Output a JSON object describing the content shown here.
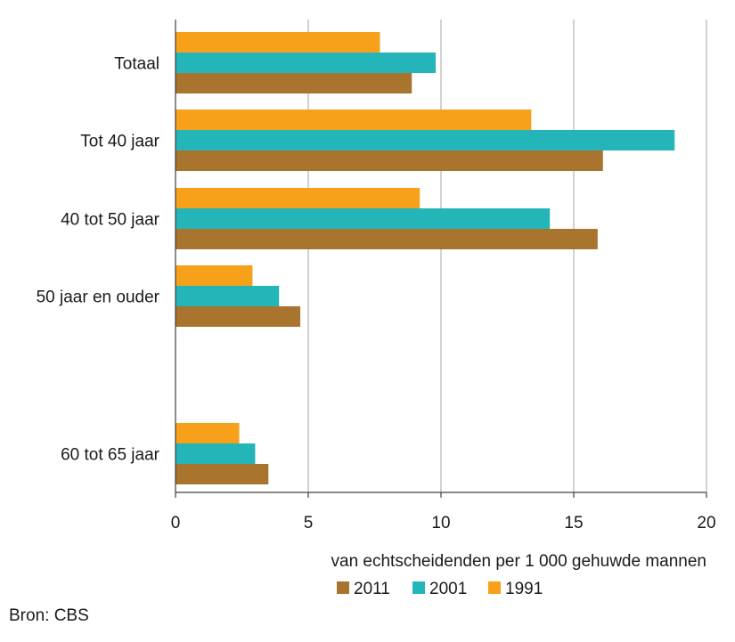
{
  "chart_data": {
    "type": "bar",
    "orientation": "horizontal",
    "categories": [
      "Totaal",
      "Tot 40 jaar",
      "40 tot 50 jaar",
      "50 jaar en ouder",
      "60 tot 65 jaar"
    ],
    "series": [
      {
        "name": "1991",
        "color": "#f7a11a",
        "values": [
          7.7,
          13.4,
          9.2,
          2.9,
          2.4
        ]
      },
      {
        "name": "2001",
        "color": "#23b5b8",
        "values": [
          9.8,
          18.8,
          14.1,
          3.9,
          3.0
        ]
      },
      {
        "name": "2011",
        "color": "#a8742e",
        "values": [
          8.9,
          16.1,
          15.9,
          4.7,
          3.5
        ]
      }
    ],
    "legend_order": [
      "2011",
      "2001",
      "1991"
    ],
    "xlabel": "van echtscheidenden per 1 000 gehuwde mannen",
    "xlim": [
      0,
      20
    ],
    "xticks": [
      0,
      5,
      10,
      15,
      20
    ],
    "grid": "vertical",
    "legend_position": "bottom"
  },
  "source": "Bron: CBS"
}
